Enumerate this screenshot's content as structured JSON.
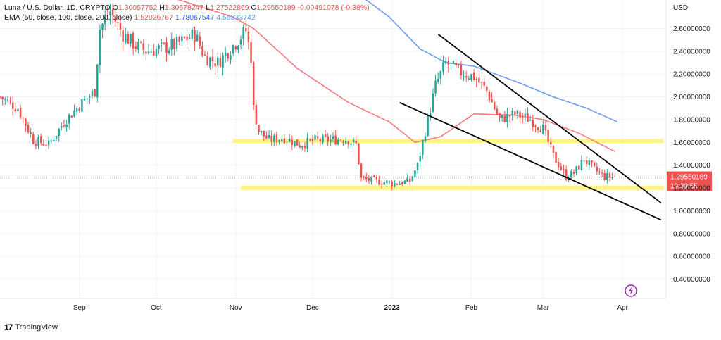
{
  "legend": {
    "symbol": "Luna / U.S. Dollar, 1D, CRYPTO",
    "o_label": "O",
    "o": "1.30057752",
    "h_label": "H",
    "h": "1.30678247",
    "l_label": "L",
    "l": "1.27522869",
    "c_label": "C",
    "c": "1.29550189",
    "change": "-0.00491078 (-0.38%)",
    "ema_label": "EMA (50, close, 100, close, 200, close)",
    "ema50": "1.52026767",
    "ema100": "1.78067547",
    "ema200": "4.55333742"
  },
  "branding": {
    "name": "TradingView"
  },
  "colors": {
    "up": "#26a69a",
    "down": "#ef5350",
    "ema50": "#f77c80",
    "ema100": "#6e9cf0",
    "zone": "#fff176",
    "trend": "#000000"
  },
  "chart_data": {
    "type": "candlestick",
    "currency_label": "USD",
    "y_ticks": [
      "2.60000000",
      "2.40000000",
      "2.20000000",
      "2.00000000",
      "1.80000000",
      "1.60000000",
      "1.40000000",
      "1.20000000",
      "1.00000000",
      "0.80000000",
      "0.60000000",
      "0.40000000"
    ],
    "y_tick_values": [
      2.6,
      2.4,
      2.2,
      2.0,
      1.8,
      1.6,
      1.4,
      1.2,
      1.0,
      0.8,
      0.6,
      0.4
    ],
    "ylim": [
      0.23,
      2.85
    ],
    "x_ticks": [
      {
        "label": "Sep",
        "date": "2022-09-01"
      },
      {
        "label": "Oct",
        "date": "2022-10-01"
      },
      {
        "label": "Nov",
        "date": "2022-11-01"
      },
      {
        "label": "Dec",
        "date": "2022-12-01"
      },
      {
        "label": "2023",
        "date": "2023-01-01"
      },
      {
        "label": "Feb",
        "date": "2023-02-01"
      },
      {
        "label": "Mar",
        "date": "2023-03-01"
      },
      {
        "label": "Apr",
        "date": "2023-04-01"
      }
    ],
    "xlim": [
      "2022-08-01",
      "2023-04-18"
    ],
    "last_price": {
      "label": "1.29550189",
      "value": 1.2955,
      "countdown": "19:39:55"
    },
    "close_keypoints": [
      [
        "2022-08-01",
        2.0
      ],
      [
        "2022-08-08",
        1.9
      ],
      [
        "2022-08-14",
        1.62
      ],
      [
        "2022-08-20",
        1.58
      ],
      [
        "2022-08-26",
        1.78
      ],
      [
        "2022-09-02",
        1.95
      ],
      [
        "2022-09-07",
        2.05
      ],
      [
        "2022-09-09",
        2.6
      ],
      [
        "2022-09-13",
        2.75
      ],
      [
        "2022-09-18",
        2.55
      ],
      [
        "2022-09-23",
        2.45
      ],
      [
        "2022-09-27",
        2.4
      ],
      [
        "2022-10-02",
        2.42
      ],
      [
        "2022-10-08",
        2.45
      ],
      [
        "2022-10-12",
        2.5
      ],
      [
        "2022-10-16",
        2.55
      ],
      [
        "2022-10-20",
        2.35
      ],
      [
        "2022-10-25",
        2.3
      ],
      [
        "2022-10-31",
        2.45
      ],
      [
        "2022-11-05",
        2.58
      ],
      [
        "2022-11-07",
        2.35
      ],
      [
        "2022-11-08",
        1.9
      ],
      [
        "2022-11-10",
        1.7
      ],
      [
        "2022-11-14",
        1.62
      ],
      [
        "2022-11-20",
        1.64
      ],
      [
        "2022-11-26",
        1.58
      ],
      [
        "2022-12-02",
        1.62
      ],
      [
        "2022-12-08",
        1.62
      ],
      [
        "2022-12-14",
        1.63
      ],
      [
        "2022-12-18",
        1.58
      ],
      [
        "2022-12-20",
        1.28
      ],
      [
        "2022-12-26",
        1.26
      ],
      [
        "2023-01-02",
        1.24
      ],
      [
        "2023-01-08",
        1.26
      ],
      [
        "2023-01-11",
        1.4
      ],
      [
        "2023-01-14",
        1.7
      ],
      [
        "2023-01-18",
        2.1
      ],
      [
        "2023-01-22",
        2.3
      ],
      [
        "2023-01-27",
        2.22
      ],
      [
        "2023-02-02",
        2.18
      ],
      [
        "2023-02-07",
        2.05
      ],
      [
        "2023-02-12",
        1.8
      ],
      [
        "2023-02-18",
        1.85
      ],
      [
        "2023-02-24",
        1.8
      ],
      [
        "2023-03-01",
        1.72
      ],
      [
        "2023-03-05",
        1.48
      ],
      [
        "2023-03-10",
        1.3
      ],
      [
        "2023-03-13",
        1.33
      ],
      [
        "2023-03-17",
        1.45
      ],
      [
        "2023-03-21",
        1.36
      ],
      [
        "2023-03-25",
        1.3
      ],
      [
        "2023-03-29",
        1.2955
      ]
    ],
    "ema50_points": [
      [
        "2022-08-01",
        3.2
      ],
      [
        "2022-10-10",
        2.85
      ],
      [
        "2022-10-31",
        2.7
      ],
      [
        "2022-11-08",
        2.6
      ],
      [
        "2022-11-25",
        2.25
      ],
      [
        "2022-12-15",
        1.95
      ],
      [
        "2022-12-31",
        1.78
      ],
      [
        "2023-01-10",
        1.6
      ],
      [
        "2023-01-20",
        1.65
      ],
      [
        "2023-02-02",
        1.85
      ],
      [
        "2023-02-18",
        1.84
      ],
      [
        "2023-03-01",
        1.8
      ],
      [
        "2023-03-15",
        1.68
      ],
      [
        "2023-03-29",
        1.52
      ]
    ],
    "ema100_points": [
      [
        "2022-12-13",
        3.0
      ],
      [
        "2022-12-31",
        2.7
      ],
      [
        "2023-01-12",
        2.42
      ],
      [
        "2023-01-22",
        2.3
      ],
      [
        "2023-02-02",
        2.27
      ],
      [
        "2023-02-20",
        2.12
      ],
      [
        "2023-03-05",
        2.0
      ],
      [
        "2023-03-18",
        1.9
      ],
      [
        "2023-03-30",
        1.78
      ]
    ],
    "zones": [
      {
        "name": "resistance-zone",
        "from": "2022-10-31",
        "to": "2023-04-17",
        "y0": 1.595,
        "y1": 1.63
      },
      {
        "name": "support-zone",
        "from": "2022-11-03",
        "to": "2023-04-17",
        "y0": 1.18,
        "y1": 1.22
      }
    ],
    "trend_lines": [
      {
        "name": "upper-trendline",
        "p1": [
          "2023-01-19",
          2.55
        ],
        "p2": [
          "2023-04-16",
          1.07
        ]
      },
      {
        "name": "lower-trendline",
        "p1": [
          "2023-01-04",
          1.95
        ],
        "p2": [
          "2023-04-16",
          0.92
        ]
      }
    ]
  }
}
